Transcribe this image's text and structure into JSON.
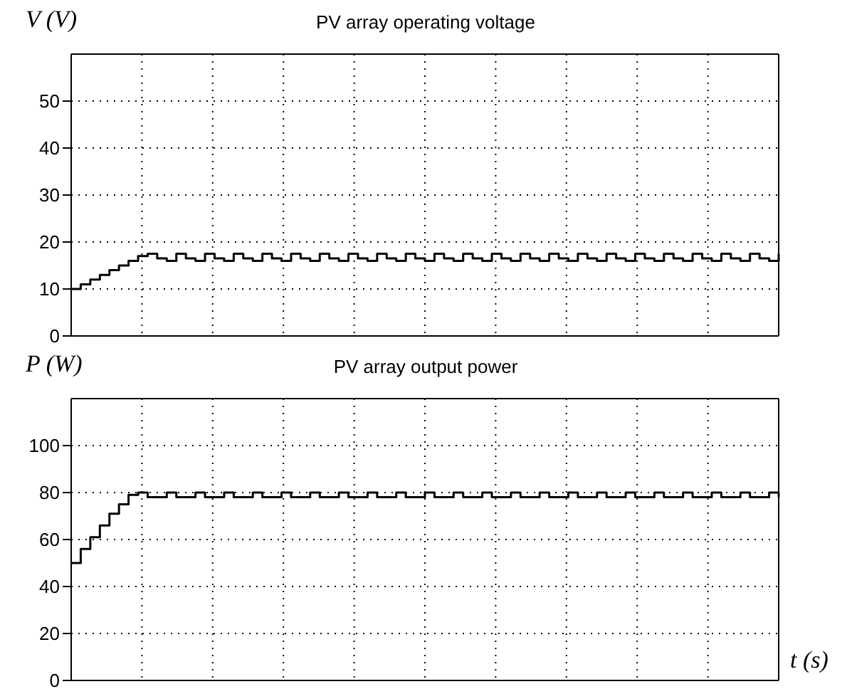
{
  "chart_data": [
    {
      "type": "step",
      "title": "PV array operating voltage",
      "ylabel": "V (V)",
      "categories": [
        null,
        null,
        null,
        null,
        null,
        null,
        null,
        null,
        null,
        null,
        null,
        null,
        null,
        null,
        null,
        null,
        null,
        null,
        null,
        null,
        null,
        null,
        null,
        null,
        null,
        null,
        null,
        null,
        null,
        null,
        null,
        null,
        null,
        null,
        null,
        null,
        null,
        null,
        null,
        null,
        null,
        null,
        null,
        null,
        null,
        null,
        null,
        null,
        null,
        null,
        null,
        null,
        null,
        null,
        null,
        null,
        null,
        null,
        null,
        null,
        null,
        null,
        null,
        null,
        null,
        null,
        null,
        null,
        null,
        null,
        null,
        null,
        null,
        null,
        null
      ],
      "series": [
        {
          "color": "#000000",
          "values": [
            10,
            11,
            12,
            13,
            14,
            15,
            16,
            17,
            17.5,
            16.5,
            16,
            17.5,
            16.5,
            16,
            17.5,
            16.5,
            16,
            17.5,
            16.5,
            16,
            17.5,
            16.5,
            16,
            17.5,
            16.5,
            16,
            17.5,
            16.5,
            16,
            17.5,
            16.5,
            16,
            17.5,
            16.5,
            16,
            17.5,
            16.5,
            16,
            17.5,
            16.5,
            16,
            17.5,
            16.5,
            16,
            17.5,
            16.5,
            16,
            17.5,
            16.5,
            16,
            17.5,
            16.5,
            16,
            17.5,
            16.5,
            16,
            17.5,
            16.5,
            16,
            17.5,
            16.5,
            16,
            17.5,
            16.5,
            16,
            17.5,
            16.5,
            16,
            17.5,
            16.5,
            16,
            17.5,
            16.5,
            16,
            17.5
          ]
        }
      ],
      "ylim": [
        0,
        60
      ],
      "yticks": [
        0,
        10,
        20,
        30,
        40,
        50
      ],
      "grid": true,
      "tick_labels": "y",
      "marker": "none",
      "line_style": "solid"
    },
    {
      "type": "step",
      "title": "PV array output power",
      "ylabel": "P (W)",
      "xlabel": "t (s)",
      "categories": [
        null,
        null,
        null,
        null,
        null,
        null,
        null,
        null,
        null,
        null,
        null,
        null,
        null,
        null,
        null,
        null,
        null,
        null,
        null,
        null,
        null,
        null,
        null,
        null,
        null,
        null,
        null,
        null,
        null,
        null,
        null,
        null,
        null,
        null,
        null,
        null,
        null,
        null,
        null,
        null,
        null,
        null,
        null,
        null,
        null,
        null,
        null,
        null,
        null,
        null,
        null,
        null,
        null,
        null,
        null,
        null,
        null,
        null,
        null,
        null,
        null,
        null,
        null,
        null,
        null,
        null,
        null,
        null,
        null,
        null,
        null,
        null,
        null,
        null,
        null
      ],
      "series": [
        {
          "color": "#000000",
          "values": [
            50,
            56,
            61,
            66,
            71,
            75,
            79,
            80,
            78,
            78,
            80,
            78,
            78,
            80,
            78,
            78,
            80,
            78,
            78,
            80,
            78,
            78,
            80,
            78,
            78,
            80,
            78,
            78,
            80,
            78,
            78,
            80,
            78,
            78,
            80,
            78,
            78,
            80,
            78,
            78,
            80,
            78,
            78,
            80,
            78,
            78,
            80,
            78,
            78,
            80,
            78,
            78,
            80,
            78,
            78,
            80,
            78,
            78,
            80,
            78,
            78,
            80,
            78,
            78,
            80,
            78,
            78,
            80,
            78,
            78,
            80,
            78,
            78,
            80,
            78
          ]
        }
      ],
      "ylim": [
        0,
        120
      ],
      "yticks": [
        0,
        20,
        40,
        60,
        80,
        100
      ],
      "grid": true,
      "tick_labels": "y",
      "marker": "none",
      "line_style": "solid"
    }
  ]
}
